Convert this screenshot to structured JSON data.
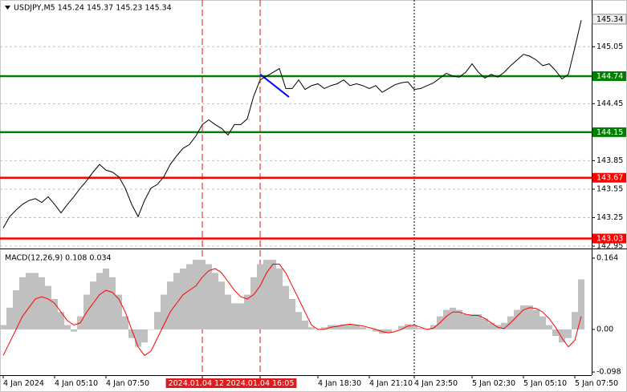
{
  "chart_data": [
    {
      "type": "line",
      "title": "USDJPY,M5  145.24 145.37 145.23 145.34",
      "color": "#000000",
      "categories": [
        "4 Jan 2024",
        null,
        null,
        null,
        null,
        null,
        null,
        null,
        "4 Jan 05:10",
        null,
        null,
        null,
        null,
        null,
        null,
        null,
        "4 Jan 07:50",
        null,
        null,
        null,
        null,
        null,
        null,
        null,
        null,
        null,
        null,
        null,
        null,
        null,
        null,
        "2024.01.04 12:45",
        null,
        null,
        null,
        null,
        null,
        null,
        null,
        null,
        "2024.01.04 16:05",
        null,
        null,
        null,
        null,
        null,
        null,
        null,
        null,
        "4 Jan 18:30",
        null,
        null,
        null,
        null,
        null,
        null,
        null,
        "4 Jan 21:10",
        null,
        null,
        null,
        null,
        null,
        null,
        "4 Jan 23:50",
        null,
        null,
        null,
        null,
        null,
        null,
        null,
        null,
        "5 Jan 02:30",
        null,
        null,
        null,
        null,
        null,
        null,
        null,
        "5 Jan 05:10",
        null,
        null,
        null,
        null,
        null,
        null,
        null,
        "5 Jan 07:50",
        null
      ],
      "highlighted": [
        "2024.01.04 12:45",
        "2024.01.04 16:05"
      ],
      "highlight_color": "#e31a1c",
      "separators": [
        "4 Jan 23:50"
      ],
      "values": [
        143.14,
        143.26,
        143.33,
        143.39,
        143.43,
        143.45,
        143.41,
        143.47,
        143.39,
        143.3,
        143.39,
        143.47,
        143.56,
        143.64,
        143.73,
        143.81,
        143.75,
        143.73,
        143.68,
        143.56,
        143.39,
        143.26,
        143.43,
        143.56,
        143.6,
        143.68,
        143.81,
        143.9,
        143.98,
        144.02,
        144.11,
        144.23,
        144.28,
        144.23,
        144.19,
        144.12,
        144.23,
        144.23,
        144.29,
        144.53,
        144.7,
        144.74,
        144.78,
        144.82,
        144.61,
        144.61,
        144.7,
        144.6,
        144.64,
        144.66,
        144.61,
        144.64,
        144.66,
        144.7,
        144.64,
        144.66,
        144.64,
        144.61,
        144.64,
        144.57,
        144.61,
        144.65,
        144.67,
        144.68,
        144.6,
        144.61,
        144.64,
        144.67,
        144.72,
        144.77,
        144.74,
        144.73,
        144.78,
        144.87,
        144.78,
        144.72,
        144.76,
        144.73,
        144.78,
        144.85,
        144.91,
        144.97,
        144.95,
        144.91,
        144.85,
        144.87,
        144.8,
        144.71,
        144.76,
        145.04,
        145.33
      ],
      "ylim": [
        142.95,
        145.5
      ],
      "yticks": [
        145.05,
        144.45,
        143.85,
        143.55,
        143.25,
        142.95
      ],
      "grid": true,
      "levels": [
        {
          "value": 144.74,
          "color": "#008000"
        },
        {
          "value": 144.15,
          "color": "#008000"
        },
        {
          "value": 143.67,
          "color": "#ff0000"
        },
        {
          "value": 143.03,
          "color": "#ff0000"
        }
      ],
      "last_price": 145.34,
      "trendline": {
        "color": "#0000ff",
        "x": [
          40,
          44.5
        ],
        "y": [
          144.76,
          144.52
        ]
      }
    },
    {
      "type": "macd",
      "title": "MACD(12,26,9) 0.108 0.034",
      "series": [
        {
          "type": "bar",
          "color": "#c0c0c0",
          "values": [
            0.01,
            0.05,
            0.09,
            0.12,
            0.13,
            0.13,
            0.12,
            0.1,
            0.07,
            0.04,
            0.01,
            -0.005,
            0.03,
            0.08,
            0.11,
            0.13,
            0.14,
            0.12,
            0.08,
            0.03,
            -0.02,
            -0.04,
            -0.03,
            0.0,
            0.04,
            0.08,
            0.11,
            0.13,
            0.14,
            0.15,
            0.16,
            0.16,
            0.15,
            0.13,
            0.11,
            0.08,
            0.06,
            0.06,
            0.08,
            0.12,
            0.15,
            0.16,
            0.16,
            0.14,
            0.1,
            0.07,
            0.04,
            0.02,
            0.005,
            0.0,
            0.005,
            0.01,
            0.01,
            0.012,
            0.012,
            0.01,
            0.005,
            0.0,
            -0.005,
            -0.01,
            -0.008,
            0.0,
            0.008,
            0.012,
            0.01,
            0.003,
            0.0,
            0.01,
            0.03,
            0.045,
            0.05,
            0.045,
            0.035,
            0.035,
            0.035,
            0.025,
            0.015,
            0.01,
            0.015,
            0.03,
            0.045,
            0.055,
            0.055,
            0.045,
            0.03,
            0.01,
            -0.015,
            -0.03,
            -0.02,
            0.04,
            0.115
          ]
        },
        {
          "type": "line",
          "color": "#ff0000",
          "values": [
            -0.06,
            -0.03,
            0.0,
            0.03,
            0.05,
            0.07,
            0.075,
            0.07,
            0.06,
            0.04,
            0.02,
            0.01,
            0.015,
            0.04,
            0.06,
            0.08,
            0.09,
            0.085,
            0.07,
            0.04,
            0.0,
            -0.04,
            -0.06,
            -0.05,
            -0.02,
            0.01,
            0.04,
            0.06,
            0.08,
            0.09,
            0.1,
            0.12,
            0.135,
            0.14,
            0.13,
            0.11,
            0.09,
            0.075,
            0.07,
            0.08,
            0.1,
            0.13,
            0.15,
            0.15,
            0.13,
            0.1,
            0.07,
            0.04,
            0.01,
            0.0,
            0.0,
            0.005,
            0.007,
            0.01,
            0.012,
            0.01,
            0.008,
            0.004,
            0.0,
            -0.005,
            -0.008,
            -0.005,
            0.0,
            0.008,
            0.01,
            0.005,
            0.0,
            0.003,
            0.015,
            0.03,
            0.04,
            0.04,
            0.035,
            0.032,
            0.032,
            0.025,
            0.015,
            0.005,
            0.002,
            0.015,
            0.03,
            0.045,
            0.05,
            0.048,
            0.04,
            0.025,
            0.005,
            -0.02,
            -0.04,
            -0.025,
            0.03
          ]
        }
      ],
      "ylim": [
        -0.12,
        0.175
      ],
      "yticks": [
        0.164,
        {
          "value": 0,
          "label": "0.00"
        },
        -0.098
      ]
    }
  ]
}
